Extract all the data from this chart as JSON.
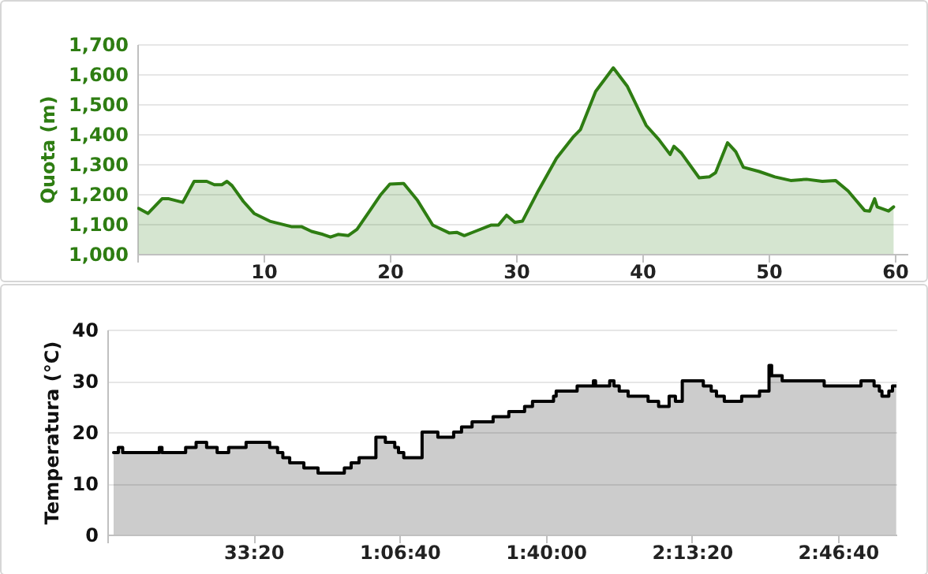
{
  "chart_data": [
    {
      "type": "area",
      "ylabel": "Quota (m)",
      "xlim": [
        0,
        61
      ],
      "xticks": [
        {
          "value": 0,
          "label": null
        },
        10,
        20,
        30,
        40,
        50,
        60
      ],
      "ylim": [
        1000,
        1700
      ],
      "yticks": [
        {
          "value": 1000,
          "label": "1,000"
        },
        {
          "value": 1100,
          "label": "1,100"
        },
        {
          "value": 1200,
          "label": "1,200"
        },
        {
          "value": 1300,
          "label": "1,300"
        },
        {
          "value": 1400,
          "label": "1,400"
        },
        {
          "value": 1500,
          "label": "1,500"
        },
        {
          "value": 1600,
          "label": "1,600"
        },
        {
          "value": 1700,
          "label": "1,700"
        }
      ],
      "grid": "y",
      "x": [
        0.1,
        0.85,
        1.96,
        2.5,
        3.6,
        4.5,
        5.5,
        6.1,
        6.7,
        7.1,
        7.5,
        8.4,
        9.25,
        10.5,
        12.2,
        13,
        13.8,
        14.7,
        15.3,
        15.9,
        16.7,
        17.4,
        18.4,
        19.25,
        20,
        21.1,
        22.2,
        23.4,
        24.7,
        25.3,
        25.9,
        26.75,
        28,
        28.6,
        29.25,
        29.9,
        30.5,
        31.75,
        33.2,
        34.5,
        35.1,
        36.3,
        37.7,
        38.8,
        40.3,
        41.3,
        42.2,
        42.5,
        43.1,
        44.5,
        45.3,
        45.8,
        46.75,
        47.4,
        48,
        49.25,
        50.5,
        51.75,
        53,
        54.25,
        55.3,
        56.3,
        57.6,
        58,
        58.4,
        58.6,
        59.5,
        59.9
      ],
      "series": [
        {
          "color": "#2e7d12",
          "values": [
            1152,
            1135,
            1184,
            1184,
            1172,
            1242,
            1242,
            1231,
            1231,
            1242,
            1228,
            1175,
            1135,
            1109,
            1091,
            1091,
            1075,
            1065,
            1056,
            1065,
            1061,
            1082,
            1143,
            1196,
            1233,
            1235,
            1178,
            1096,
            1070,
            1072,
            1061,
            1075,
            1096,
            1096,
            1129,
            1105,
            1109,
            1210,
            1319,
            1389,
            1415,
            1542,
            1621,
            1560,
            1429,
            1382,
            1332,
            1359,
            1336,
            1254,
            1257,
            1271,
            1371,
            1341,
            1289,
            1275,
            1257,
            1245,
            1249,
            1242,
            1245,
            1210,
            1145,
            1143,
            1184,
            1157,
            1143,
            1157
          ]
        }
      ]
    },
    {
      "type": "area",
      "ylabel": "Temperatura (°C)",
      "xlim": [
        0,
        10800
      ],
      "xticks": [
        {
          "value": 0,
          "label": null
        },
        {
          "value": 2000,
          "label": "33:20"
        },
        {
          "value": 4000,
          "label": "1:06:40"
        },
        {
          "value": 6000,
          "label": "1:40:00"
        },
        {
          "value": 8000,
          "label": "2:13:20"
        },
        {
          "value": 10000,
          "label": "2:46:40"
        }
      ],
      "ylim": [
        0,
        40
      ],
      "yticks": [
        0,
        10,
        20,
        30,
        40
      ],
      "grid": "y",
      "x": [
        86,
        151,
        151,
        210,
        210,
        712,
        712,
        748,
        748,
        1072,
        1072,
        1215,
        1215,
        1359,
        1359,
        1503,
        1503,
        1661,
        1661,
        1899,
        1899,
        2222,
        2222,
        2330,
        2330,
        2402,
        2402,
        2496,
        2496,
        2690,
        2690,
        2884,
        2884,
        3244,
        3244,
        3337,
        3337,
        3445,
        3445,
        3676,
        3676,
        3805,
        3805,
        3934,
        3934,
        3985,
        3985,
        4057,
        4057,
        4308,
        4308,
        4524,
        4524,
        4740,
        4740,
        4848,
        4848,
        4992,
        4992,
        5280,
        5280,
        5495,
        5495,
        5711,
        5711,
        5819,
        5819,
        6107,
        6107,
        6143,
        6143,
        6430,
        6430,
        6653,
        6653,
        6682,
        6682,
        6876,
        6876,
        6934,
        6934,
        7006,
        7006,
        7128,
        7128,
        7401,
        7401,
        7545,
        7545,
        7689,
        7689,
        7775,
        7775,
        7869,
        7869,
        8157,
        8157,
        8265,
        8265,
        8337,
        8337,
        8444,
        8444,
        8682,
        8682,
        8926,
        8926,
        9056,
        9056,
        9092,
        9092,
        9236,
        9236,
        9811,
        9811,
        10315,
        10315,
        10494,
        10494,
        10566,
        10566,
        10602,
        10602,
        10696,
        10696,
        10746,
        10746,
        10797
      ],
      "series": [
        {
          "color": "#000000",
          "values": [
            16,
            16,
            17,
            17,
            16,
            16,
            17,
            17,
            16,
            16,
            17,
            17,
            18,
            18,
            17,
            17,
            16,
            16,
            17,
            17,
            18,
            18,
            17,
            17,
            16,
            16,
            15,
            15,
            14,
            14,
            13,
            13,
            12,
            12,
            13,
            13,
            14,
            14,
            15,
            15,
            19,
            19,
            18,
            18,
            17,
            17,
            16,
            16,
            15,
            15,
            20,
            20,
            19,
            19,
            20,
            20,
            21,
            21,
            22,
            22,
            23,
            23,
            24,
            24,
            25,
            25,
            26,
            26,
            27,
            27,
            28,
            28,
            29,
            29,
            30,
            30,
            29,
            29,
            30,
            30,
            29,
            29,
            28,
            28,
            27,
            27,
            26,
            26,
            25,
            25,
            27,
            27,
            26,
            26,
            30,
            30,
            29,
            29,
            28,
            28,
            27,
            27,
            26,
            26,
            27,
            27,
            28,
            28,
            33,
            33,
            31,
            31,
            30,
            30,
            29,
            29,
            30,
            30,
            29,
            29,
            28,
            28,
            27,
            27,
            28,
            28,
            29,
            29
          ]
        }
      ]
    }
  ]
}
